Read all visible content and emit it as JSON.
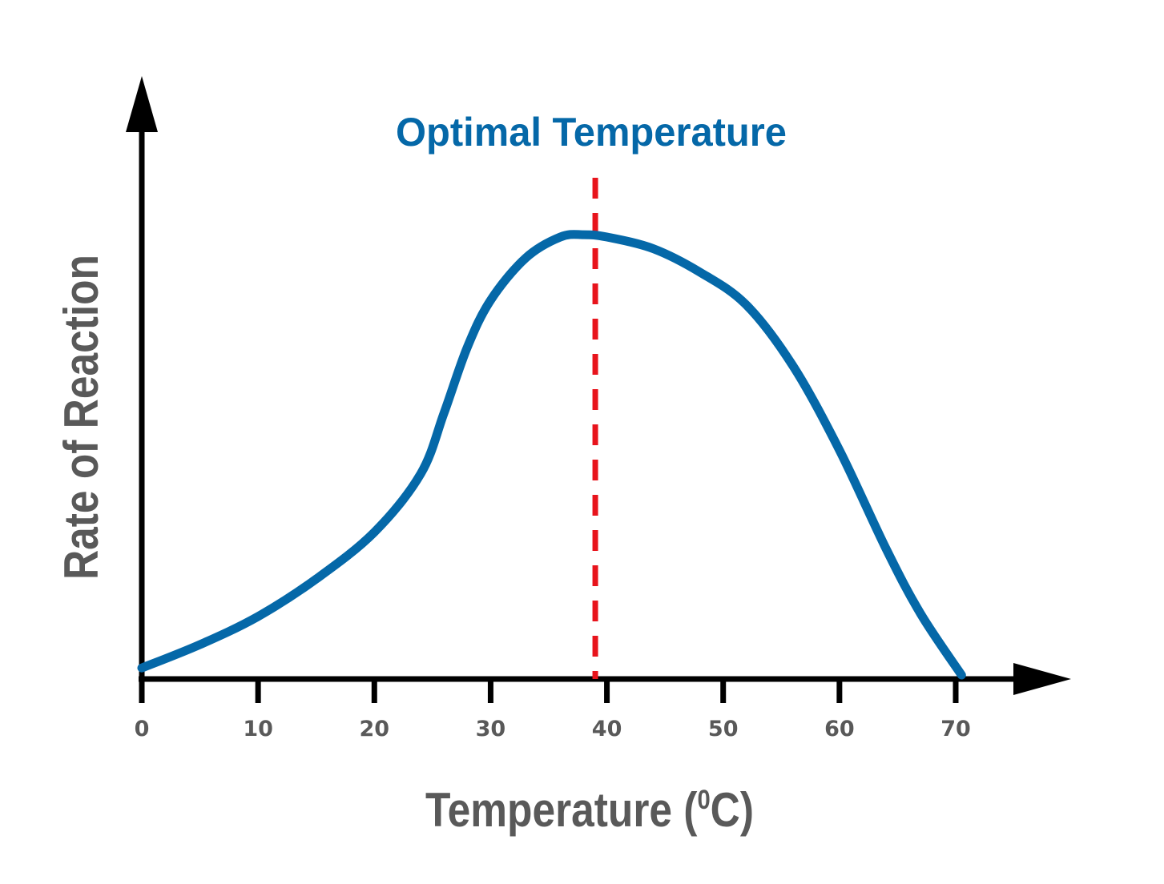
{
  "chart_data": {
    "type": "line",
    "title": "",
    "annotation": "Optimal Temperature",
    "xlabel": "Temperature (",
    "xlabel_sup": "0",
    "xlabel_end": "C)",
    "ylabel": "Rate of Reaction",
    "xlim": [
      0,
      76
    ],
    "ylim": [
      0,
      100
    ],
    "x_ticks": [
      0,
      10,
      20,
      30,
      40,
      50,
      60,
      70
    ],
    "x_tick_labels": [
      "0",
      "10",
      "20",
      "30",
      "40",
      "50",
      "60",
      "70"
    ],
    "optimal_x": 39,
    "grid": false,
    "legend": "none",
    "series": [
      {
        "color": "#0568a8",
        "x": [
          0,
          5,
          10,
          15,
          20,
          24,
          26,
          28,
          30,
          33,
          36,
          38,
          40,
          44,
          48,
          52,
          56,
          60,
          64,
          67,
          70.5
        ],
        "y": [
          1.5,
          6.5,
          12.5,
          20.5,
          30.5,
          43,
          56,
          70,
          80,
          89,
          93.5,
          94,
          93.5,
          91,
          86,
          79,
          66,
          48,
          27,
          13,
          0
        ]
      }
    ],
    "colors": {
      "curve": "#0568a8",
      "optimal_line": "#e8141c",
      "axis": "#000000",
      "text": "#595959"
    }
  }
}
